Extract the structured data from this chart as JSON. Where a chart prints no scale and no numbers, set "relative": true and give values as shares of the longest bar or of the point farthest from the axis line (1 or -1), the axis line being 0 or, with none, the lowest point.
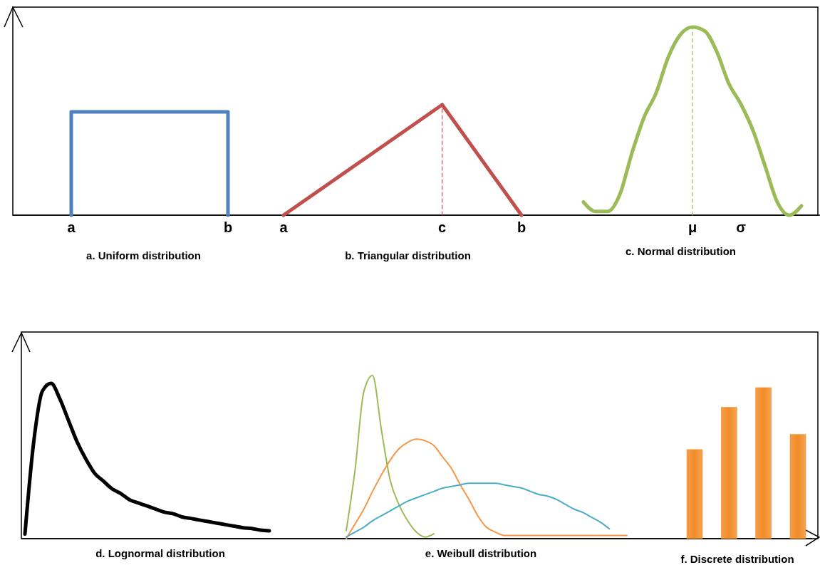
{
  "chart_data": [
    {
      "type": "line",
      "title": "a. Uniform distribution",
      "relative": true,
      "categories": [
        "a",
        "b"
      ],
      "series": [
        {
          "color": "#4f81bd",
          "x": [
            "a",
            "a",
            "b",
            "b"
          ],
          "values": [
            0,
            1,
            1,
            0
          ]
        }
      ]
    },
    {
      "type": "line",
      "title": "b. Triangular distribution",
      "relative": true,
      "categories": [
        "a",
        null,
        "c",
        "b"
      ],
      "series": [
        {
          "color": "#c0504d",
          "x": [
            "a",
            "c",
            "b"
          ],
          "values": [
            0,
            1,
            0
          ]
        },
        {
          "color": "#c0504d",
          "x": [
            "c",
            "c"
          ],
          "values": [
            0,
            1
          ],
          "line_style": "dashed"
        }
      ]
    },
    {
      "type": "line",
      "title": "c. Normal distribution",
      "relative": true,
      "categories": [
        null,
        null,
        null,
        null,
        null,
        null,
        null,
        null,
        null,
        "μ",
        null,
        null,
        null,
        "σ",
        null,
        null,
        null,
        null,
        null
      ],
      "series": [
        {
          "color": "#9bbb59",
          "values": [
            0.07,
            0.02,
            0.02,
            0.11,
            0.33,
            0.52,
            0.65,
            0.84,
            0.96,
            1,
            0.98,
            0.87,
            0.7,
            0.59,
            0.45,
            0.26,
            0.07,
            0,
            0.05
          ]
        },
        {
          "color": "#9bbb59",
          "x": [
            "μ",
            "μ"
          ],
          "values": [
            0,
            1
          ],
          "line_style": "dashed"
        }
      ]
    },
    {
      "type": "line",
      "title": "d. Lognormal distribution",
      "relative": true,
      "categories": [
        null,
        null,
        null,
        null,
        null,
        null,
        null,
        null,
        null,
        null,
        null,
        null,
        null,
        null,
        null,
        null,
        null,
        null,
        null,
        null,
        null,
        null,
        null,
        null,
        null,
        null,
        null,
        null,
        null
      ],
      "series": [
        {
          "color": "#000000",
          "values": [
            0.03,
            0.62,
            0.95,
            1,
            0.9,
            0.76,
            0.62,
            0.51,
            0.42,
            0.37,
            0.32,
            0.29,
            0.25,
            0.23,
            0.21,
            0.19,
            0.17,
            0.16,
            0.14,
            0.13,
            0.12,
            0.11,
            0.1,
            0.09,
            0.08,
            0.07,
            0.065,
            0.055,
            0.05
          ]
        }
      ]
    },
    {
      "type": "line",
      "title": "e. Weibull distribution",
      "relative": true,
      "categories": [
        null,
        null,
        null,
        null,
        null,
        null,
        null,
        null,
        null,
        null,
        null,
        null,
        null,
        null,
        null,
        null,
        null,
        null,
        null,
        null,
        null,
        null,
        null,
        null,
        null,
        null,
        null,
        null,
        null,
        null,
        null,
        null,
        null
      ],
      "series": [
        {
          "color": "#9bbb59",
          "values": [
            0.05,
            0.42,
            0.9,
            1,
            0.67,
            0.36,
            0.21,
            0.11,
            0.04,
            0.01,
            0.03,
            null,
            null,
            null,
            null,
            null,
            null,
            null,
            null,
            null,
            null,
            null,
            null,
            null,
            null,
            null,
            null,
            null,
            null,
            null,
            null,
            null,
            null
          ]
        },
        {
          "color": "#f79646",
          "values": [
            0,
            0.09,
            0.18,
            0.29,
            0.39,
            0.48,
            0.55,
            0.59,
            0.61,
            0.6,
            0.57,
            0.5,
            0.43,
            0.33,
            0.24,
            0.14,
            0.07,
            0.04,
            0.02,
            0.02,
            0.02,
            0.02,
            0.02,
            0.02,
            0.02,
            0.02,
            0.02,
            0.02,
            0.02,
            0.02,
            0.02,
            0.02,
            0.02
          ]
        },
        {
          "color": "#4bacc6",
          "values": [
            0.01,
            0.04,
            0.07,
            0.11,
            0.14,
            0.17,
            0.2,
            0.23,
            0.25,
            0.27,
            0.29,
            0.31,
            0.32,
            0.33,
            0.34,
            0.34,
            0.34,
            0.34,
            0.33,
            0.32,
            0.31,
            0.29,
            0.27,
            0.26,
            0.24,
            0.21,
            0.18,
            0.16,
            0.13,
            0.1,
            0.06,
            null,
            null
          ]
        }
      ]
    },
    {
      "type": "bar",
      "title": "f. Discrete distribution",
      "relative": true,
      "categories": [
        null,
        null,
        null,
        null
      ],
      "color": "#f28c28",
      "values": [
        0.59,
        0.87,
        1,
        0.69
      ]
    }
  ]
}
